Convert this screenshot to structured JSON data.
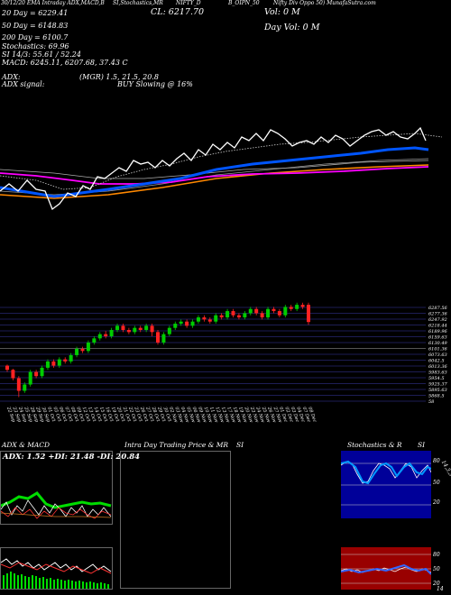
{
  "header": {
    "line1_left": "30/12/20 EMA Intraday ADX,MACD,B",
    "line1_mid": "SI,Stochastics,MR",
    "line1_name": "NIFTY_D",
    "line1_code": "B_OIPN_50",
    "line1_desc": "Nifty Div Oppo 50) MunafaSutra.com",
    "close_label": "CL: 6217.70",
    "vol": "Vol: 0  M",
    "day_vol": "Day Vol: 0  M",
    "ma20": "20  Day = 6229.41",
    "ma50": "50  Day = 6148.83",
    "ma200": "200  Day = 6100.7",
    "stochastics": "Stochastics: 69.96",
    "si": "SI 14/3: 55.61 / 52.24",
    "macd": "MACD: 6245.11,  6207.68,  37.43 C",
    "adx": "ADX:",
    "adx_vals": "(MGR) 1.5,  21.5,  20.8",
    "adx_signal": "ADX  signal:",
    "buy_signal": "BUY Slowing @ 16%"
  },
  "panels": {
    "adx_title": "ADX  & MACD",
    "adx_vals": "ADX: 1.52  +DI: 21.48  -DI: 20.84",
    "intraday_title": "Intra Day Trading Price  & MR",
    "intraday_si": "SI",
    "stoch_title": "Stochastics & R",
    "stoch_si": "SI",
    "stoch_side": "14,3,3",
    "stoch_levels": [
      "80",
      "50",
      "20"
    ],
    "rsi_levels": [
      "80",
      "50",
      "20"
    ],
    "rsi_side": "14"
  },
  "colors": {
    "up": "#00cc00",
    "down": "#ff2222",
    "price": "#ffffff",
    "ma20": "#0055ff",
    "ma50": "#ff00ff",
    "ma200": "#ff8800",
    "stoch_bg": "#000099",
    "rsi_bg": "#990000"
  },
  "chart_data": {
    "type": "candlestick",
    "price_axis": [
      "6287.56",
      "6277.36",
      "6247.92",
      "6218.44",
      "6189.96",
      "6159.63",
      "6130.49",
      "6101.36",
      "6073.63",
      "6042.5",
      "6013.36",
      "5983.63",
      "5954.5",
      "5925.37",
      "5895.63",
      "5868.5",
      "58"
    ],
    "dates": [
      "22 Sep",
      "23 Sep",
      "24 Sep",
      "25 Sep",
      "28 Sep",
      "29 Sep",
      "30 Sep",
      "01 Oct",
      "05 Oct",
      "06 Oct",
      "07 Oct",
      "08 Oct",
      "09 Oct",
      "12 Oct",
      "13 Oct",
      "14 Oct",
      "15 Oct",
      "16 Oct",
      "19 Oct",
      "20 Oct",
      "21 Oct",
      "22 Oct",
      "23 Oct",
      "26 Oct",
      "27 Oct",
      "28 Oct",
      "29 Oct",
      "30 Oct",
      "02 Nov",
      "03 Nov",
      "04 Nov",
      "05 Nov",
      "06 Nov",
      "09 Nov",
      "10 Nov",
      "11 Nov",
      "12 Nov",
      "13 Nov",
      "17 Nov",
      "18 Nov",
      "19 Nov",
      "20 Nov",
      "23 Nov",
      "24 Nov",
      "25 Nov",
      "26 Nov",
      "27 Nov",
      "01 Dec",
      "02 Dec",
      "03 Dec",
      "04 Dec",
      "07 Dec",
      "08 Dec"
    ],
    "candles": [
      {
        "o": 6010,
        "c": 5990,
        "h": 6015,
        "l": 5980
      },
      {
        "o": 5990,
        "c": 5950,
        "h": 5995,
        "l": 5940
      },
      {
        "o": 5950,
        "c": 5890,
        "h": 5960,
        "l": 5860
      },
      {
        "o": 5890,
        "c": 5920,
        "h": 5930,
        "l": 5880
      },
      {
        "o": 5920,
        "c": 5980,
        "h": 5990,
        "l": 5910
      },
      {
        "o": 5980,
        "c": 5960,
        "h": 5990,
        "l": 5950
      },
      {
        "o": 5960,
        "c": 6000,
        "h": 6010,
        "l": 5950
      },
      {
        "o": 6000,
        "c": 6030,
        "h": 6040,
        "l": 5990
      },
      {
        "o": 6030,
        "c": 6010,
        "h": 6040,
        "l": 6000
      },
      {
        "o": 6010,
        "c": 6040,
        "h": 6050,
        "l": 6000
      },
      {
        "o": 6040,
        "c": 6030,
        "h": 6050,
        "l": 6020
      },
      {
        "o": 6030,
        "c": 6060,
        "h": 6070,
        "l": 6020
      },
      {
        "o": 6060,
        "c": 6090,
        "h": 6100,
        "l": 6050
      },
      {
        "o": 6090,
        "c": 6080,
        "h": 6100,
        "l": 6070
      },
      {
        "o": 6080,
        "c": 6120,
        "h": 6130,
        "l": 6070
      },
      {
        "o": 6120,
        "c": 6140,
        "h": 6150,
        "l": 6110
      },
      {
        "o": 6140,
        "c": 6160,
        "h": 6170,
        "l": 6130
      },
      {
        "o": 6160,
        "c": 6150,
        "h": 6175,
        "l": 6140
      },
      {
        "o": 6150,
        "c": 6180,
        "h": 6190,
        "l": 6140
      },
      {
        "o": 6180,
        "c": 6200,
        "h": 6210,
        "l": 6170
      },
      {
        "o": 6200,
        "c": 6180,
        "h": 6210,
        "l": 6170
      },
      {
        "o": 6180,
        "c": 6170,
        "h": 6190,
        "l": 6160
      },
      {
        "o": 6170,
        "c": 6190,
        "h": 6200,
        "l": 6160
      },
      {
        "o": 6190,
        "c": 6180,
        "h": 6200,
        "l": 6170
      },
      {
        "o": 6180,
        "c": 6200,
        "h": 6210,
        "l": 6170
      },
      {
        "o": 6200,
        "c": 6170,
        "h": 6210,
        "l": 6150
      },
      {
        "o": 6170,
        "c": 6120,
        "h": 6180,
        "l": 6110
      },
      {
        "o": 6120,
        "c": 6160,
        "h": 6170,
        "l": 6110
      },
      {
        "o": 6160,
        "c": 6190,
        "h": 6200,
        "l": 6150
      },
      {
        "o": 6190,
        "c": 6210,
        "h": 6220,
        "l": 6180
      },
      {
        "o": 6210,
        "c": 6220,
        "h": 6230,
        "l": 6200
      },
      {
        "o": 6220,
        "c": 6200,
        "h": 6230,
        "l": 6190
      },
      {
        "o": 6200,
        "c": 6220,
        "h": 6230,
        "l": 6190
      },
      {
        "o": 6220,
        "c": 6240,
        "h": 6250,
        "l": 6210
      },
      {
        "o": 6240,
        "c": 6230,
        "h": 6250,
        "l": 6220
      },
      {
        "o": 6230,
        "c": 6220,
        "h": 6240,
        "l": 6210
      },
      {
        "o": 6220,
        "c": 6250,
        "h": 6260,
        "l": 6210
      },
      {
        "o": 6250,
        "c": 6240,
        "h": 6260,
        "l": 6230
      },
      {
        "o": 6240,
        "c": 6270,
        "h": 6280,
        "l": 6230
      },
      {
        "o": 6270,
        "c": 6250,
        "h": 6280,
        "l": 6240
      },
      {
        "o": 6250,
        "c": 6240,
        "h": 6260,
        "l": 6230
      },
      {
        "o": 6240,
        "c": 6260,
        "h": 6270,
        "l": 6230
      },
      {
        "o": 6260,
        "c": 6280,
        "h": 6290,
        "l": 6250
      },
      {
        "o": 6280,
        "c": 6260,
        "h": 6290,
        "l": 6250
      },
      {
        "o": 6260,
        "c": 6240,
        "h": 6270,
        "l": 6230
      },
      {
        "o": 6240,
        "c": 6280,
        "h": 6290,
        "l": 6230
      },
      {
        "o": 6280,
        "c": 6270,
        "h": 6290,
        "l": 6260
      },
      {
        "o": 6270,
        "c": 6250,
        "h": 6280,
        "l": 6240
      },
      {
        "o": 6250,
        "c": 6290,
        "h": 6300,
        "l": 6240
      },
      {
        "o": 6290,
        "c": 6280,
        "h": 6300,
        "l": 6270
      },
      {
        "o": 6280,
        "c": 6300,
        "h": 6310,
        "l": 6270
      },
      {
        "o": 6300,
        "c": 6290,
        "h": 6310,
        "l": 6280
      },
      {
        "o": 6300,
        "c": 6218,
        "h": 6310,
        "l": 6205
      }
    ]
  }
}
